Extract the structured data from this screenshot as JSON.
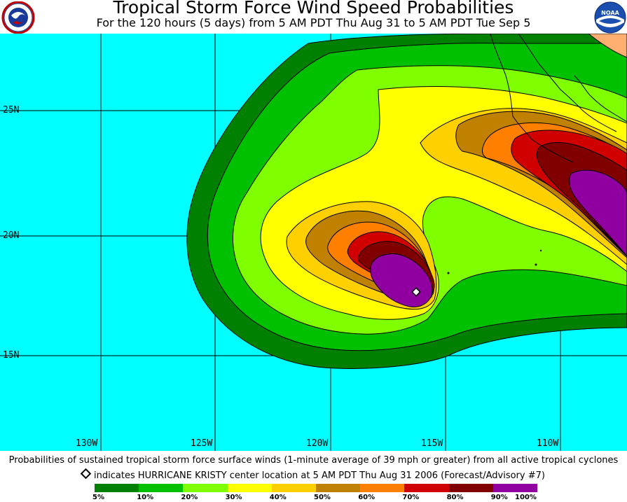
{
  "header": {
    "title": "Tropical Storm Force Wind Speed Probabilities",
    "subtitle": "For the 120 hours (5 days) from 5 AM PDT Thu Aug 31 to 5 AM PDT Tue Sep 5"
  },
  "logos": {
    "left": "NATIONAL WEATHER SERVICE",
    "right": "NOAA"
  },
  "map": {
    "ocean_color": "#00ffff",
    "lat_labels": [
      "25N",
      "20N",
      "15N"
    ],
    "lon_labels": [
      "130W",
      "125W",
      "120W",
      "115W",
      "110W"
    ],
    "storm_marker": "storm-center-diamond"
  },
  "caption": {
    "line1": "Probabilities of sustained tropical storm force surface winds (1-minute average of 39 mph or greater) from all active tropical cyclones",
    "line2": "indicates HURRICANE KRISTY center location at 5 AM PDT Thu Aug 31 2006 (Forecast/Advisory #7)"
  },
  "legend": {
    "colors": [
      "#008000",
      "#00c000",
      "#80ff00",
      "#ffff00",
      "#ffd000",
      "#c08000",
      "#ff8000",
      "#d00000",
      "#800000",
      "#9000a0"
    ],
    "labels": [
      "5%",
      "10%",
      "20%",
      "30%",
      "40%",
      "50%",
      "60%",
      "70%",
      "80%",
      "90%",
      "100%"
    ]
  }
}
